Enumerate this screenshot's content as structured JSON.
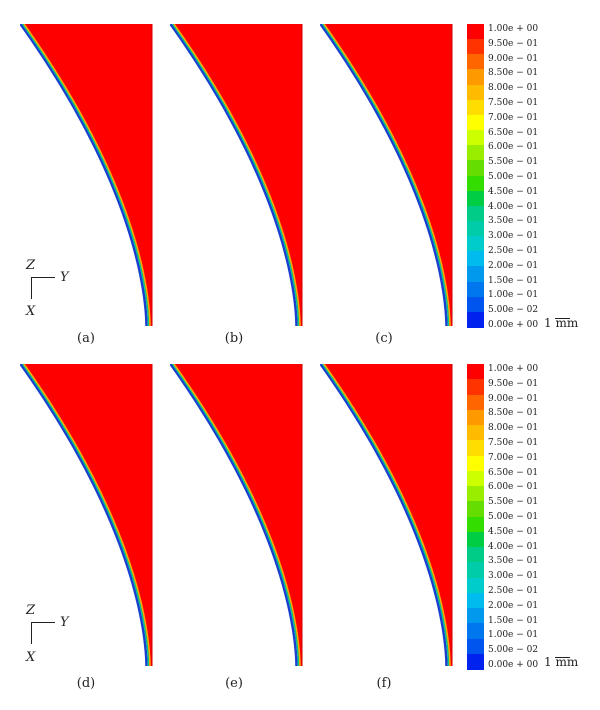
{
  "panels_top": [
    "(a)",
    "(b)",
    "(c)"
  ],
  "panels_bottom": [
    "(d)",
    "(e)",
    "(f)"
  ],
  "axes": {
    "z": "Z",
    "y": "Y",
    "x": "X"
  },
  "scale_label": "1 mm",
  "colorbar_labels": [
    "1.00e + 00",
    "9.50e − 01",
    "9.00e − 01",
    "8.50e − 01",
    "8.00e − 01",
    "7.50e − 01",
    "7.00e − 01",
    "6.50e − 01",
    "6.00e − 01",
    "5.50e − 01",
    "5.00e − 01",
    "4.50e − 01",
    "4.00e − 01",
    "3.50e − 01",
    "3.00e − 01",
    "2.50e − 01",
    "2.00e − 01",
    "1.50e − 01",
    "1.00e − 01",
    "5.00e − 02",
    "0.00e + 00"
  ],
  "colorbar_labels_bottom": [
    "1.00e + 00",
    "9.50e − 01",
    "9.00e − 01",
    "8.50e − 01",
    "8.00e − 01",
    "7.50e − 01",
    "7.00e − 01",
    "6.50e − 01",
    "6.00e − 01",
    "5.50e − 01",
    "5.00e − 01",
    "4.50e − 01",
    "4.00e − 01",
    "3.50e − 01",
    "3.00e − 01",
    "2.50e − 01",
    "2.00e − 01",
    "1.50e − 01",
    "1.00e − 01",
    "5.00e − 02",
    "0.00e + 00"
  ],
  "colorbar_colors": [
    "#ff0000",
    "#ff3300",
    "#ff6600",
    "#ff9900",
    "#ffbb00",
    "#ffdd00",
    "#ffff00",
    "#ccff00",
    "#99ee00",
    "#66dd00",
    "#33dd00",
    "#00cc44",
    "#00cc88",
    "#00ccaa",
    "#00cccc",
    "#00bbee",
    "#0099ee",
    "#0077ee",
    "#0055ee",
    "#0022ee"
  ]
}
